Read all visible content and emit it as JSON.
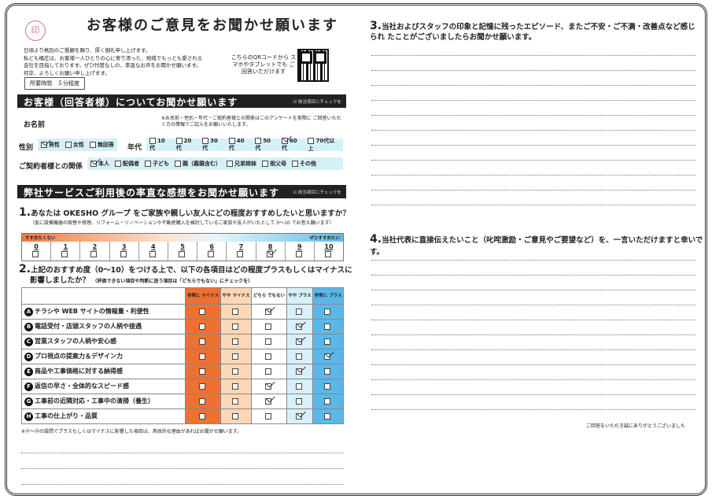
{
  "title": "お客様のご意見をお聞かせ願います",
  "stamp": "桶庄",
  "intro": [
    "日頃より格別のご愛顧を賜り、厚く御礼申し上げます。",
    "私ども桶庄は、お客様一人ひとりの心に寄り添った、地域でもっとも愛される",
    "会社を目指しております。ぜひ忖度なしの、率直なお声をお聞かせ願います。",
    "何卒、よろしくお願い申し上げます。"
  ],
  "qr_text": "こちらのQRコードから スマホやタブレットでも ご回答いただけます",
  "time_required": "所要時間　５分程度",
  "section1": {
    "title": "お客様（回答者様）についてお聞かせ願います",
    "tip": "☑ 該当項目にチェックを",
    "name_label": "お名前",
    "note": "※お名前・性別・年代・ご契約者様との関係はこのアンケートを実際に ご回答いただく方の情報でご記入をお願いいたします。",
    "gender_label": "性別",
    "gender": [
      {
        "label": "男性",
        "checked": true
      },
      {
        "label": "女性",
        "checked": false
      },
      {
        "label": "無回答",
        "checked": false
      }
    ],
    "age_label": "年代",
    "age": [
      {
        "label": "10代",
        "checked": false
      },
      {
        "label": "20代",
        "checked": false
      },
      {
        "label": "30代",
        "checked": false
      },
      {
        "label": "40代",
        "checked": false
      },
      {
        "label": "50代",
        "checked": false
      },
      {
        "label": "60代",
        "checked": true
      },
      {
        "label": "70代以上",
        "checked": false
      }
    ],
    "relation_label": "ご契約者様との関係",
    "relation": [
      {
        "label": "本人",
        "checked": true
      },
      {
        "label": "配偶者",
        "checked": false
      },
      {
        "label": "子ども",
        "checked": false
      },
      {
        "label": "親（義親含む）",
        "checked": false
      },
      {
        "label": "兄弟姉妹",
        "checked": false
      },
      {
        "label": "祖父母",
        "checked": false
      },
      {
        "label": "その他",
        "checked": false
      }
    ]
  },
  "section2": {
    "title": "弊社サービスご利用後の率直な感想をお聞かせ願います",
    "tip": "☑ 該当項目にチェックを"
  },
  "q1": {
    "num": "1.",
    "text": "あなたは OKESHO グループ をご家族や親しい友人にどの程度おすすめしたいと思いますか？",
    "sub": "（仮に設備機器の取替や修理、リフォーム・リノベーションや不動産購入を検討しているご家族や友人がいたとして 0〜10 でお答え願います）",
    "low": "すすめたくない",
    "high": "ぜひすすめたい",
    "scale": [
      "0",
      "1",
      "2",
      "3",
      "4",
      "5",
      "6",
      "7",
      "8",
      "9",
      "10"
    ],
    "selected": 8
  },
  "q2": {
    "num": "2.",
    "text": "上記のおすすめ度（0〜10）をつける上で、以下の各項目はどの程度プラスもしくはマイナスに",
    "text2": "影響しましたか？",
    "sub": "（評価できない項目や判断に迷う項目は「どちらでもない」にチェックを）",
    "columns": [
      "非常に マイナス",
      "やや マイナス",
      "どちら でもない",
      "やや プラス",
      "非常に プラス"
    ],
    "rows": [
      {
        "letter": "A",
        "label": "チラシや WEB サイトの情報量・利便性",
        "choice": 2
      },
      {
        "letter": "B",
        "label": "電話受付・店頭スタッフの人柄や接遇",
        "choice": 3
      },
      {
        "letter": "C",
        "label": "営業スタッフの人柄や安心感",
        "choice": 3
      },
      {
        "letter": "D",
        "label": "プロ視点の提案力＆デザイン力",
        "choice": 4
      },
      {
        "letter": "E",
        "label": "商品や工事価格に対する納得感",
        "choice": 3
      },
      {
        "letter": "F",
        "label": "返信の早さ・全体的なスピード感",
        "choice": 2
      },
      {
        "letter": "G",
        "label": "工事前の近隣対応・工事中の清掃（養生）",
        "choice": 2
      },
      {
        "letter": "H",
        "label": "工事の仕上がり・品質",
        "choice": 3
      }
    ],
    "note": "※Ⓐ〜Ⓗの設問でプラスもしくはマイナスに影響した項目は、具体的な理由があればお聞かせ願います。"
  },
  "q3": {
    "num": "3.",
    "text": "当社およびスタッフの印象と記憶に残ったエピソード、またご不安・ご不満・改善点など感じられ たことがございましたらお聞かせ願います。"
  },
  "q4": {
    "num": "4.",
    "text": "当社代表に直接伝えたいこと（叱咤激励・ご意見やご要望など）を、一言いただけますと幸いです。"
  },
  "thanks": "ご回答をいただき誠にありがとうございました",
  "colors": {
    "strong_minus": "#f07030",
    "minus": "#fbd7b8",
    "plus": "#d7f0fa",
    "strong_plus": "#5ab8e8",
    "header": "#222222",
    "band": "#d6f0f8"
  }
}
